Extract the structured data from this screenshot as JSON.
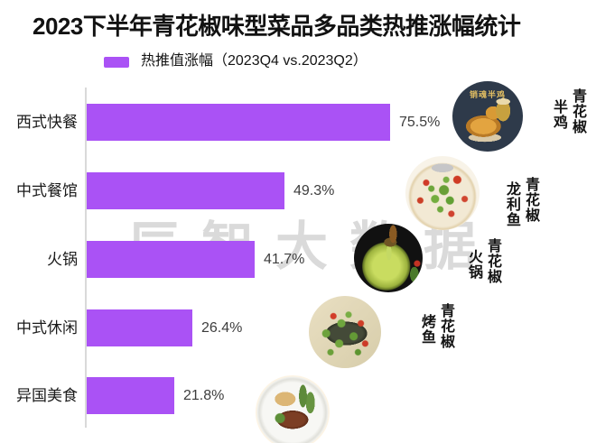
{
  "title": "2023下半年青花椒味型菜品多品类热推涨幅统计",
  "legend": {
    "label": "热推值涨幅（2023Q4 vs.2023Q2）",
    "swatch_color": "#aa52f5"
  },
  "watermark": "辰智大数据",
  "chart_data": {
    "type": "bar",
    "orientation": "horizontal",
    "title": "2023下半年青花椒味型菜品多品类热推涨幅统计",
    "series_label": "热推值涨幅（2023Q4 vs.2023Q2）",
    "categories": [
      "西式快餐",
      "中式餐馆",
      "火锅",
      "中式休闲",
      "异国美食"
    ],
    "values": [
      75.5,
      49.3,
      41.7,
      26.4,
      21.8
    ],
    "value_labels": [
      "75.5%",
      "49.3%",
      "41.7%",
      "26.4%",
      "21.8%"
    ],
    "xlim": [
      0,
      100
    ],
    "bar_color": "#aa52f5",
    "grid": false,
    "legend_position": "top"
  },
  "photos": [
    {
      "label": "青花椒半鸡",
      "line1": "青花椒",
      "line2": "半鸡",
      "overlay_text": "销魂半鸡"
    },
    {
      "label": "青花椒龙利鱼",
      "line1": "青花椒",
      "line2": "龙利鱼"
    },
    {
      "label": "青花椒火锅",
      "line1": "青花椒",
      "line2": "火锅"
    },
    {
      "label": "青花椒烤鱼",
      "line1": "青花椒",
      "line2": "烤鱼"
    }
  ]
}
